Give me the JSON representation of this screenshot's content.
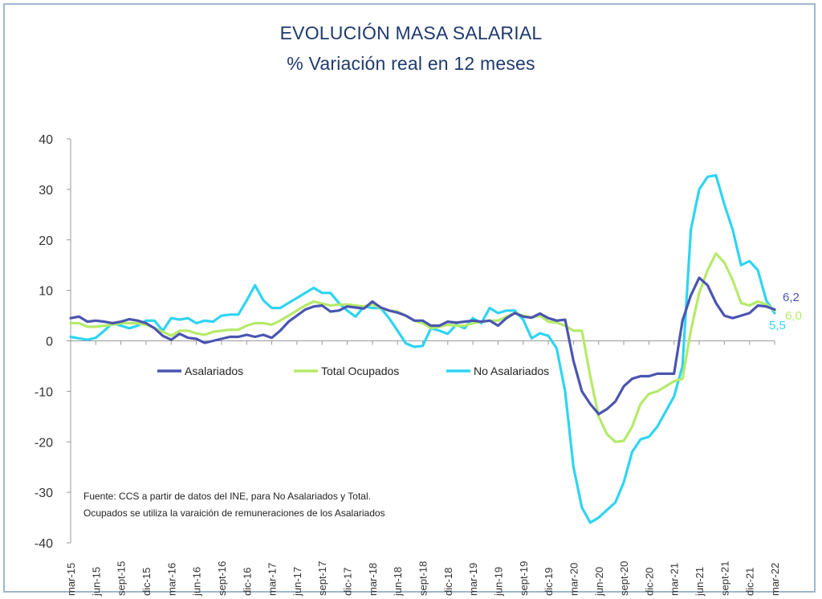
{
  "chart_data": {
    "type": "line",
    "title": "EVOLUCIÓN MASA SALARIAL",
    "subtitle": "% Variación real en 12 meses",
    "ylim": [
      -40,
      40
    ],
    "yticks": [
      40,
      30,
      20,
      10,
      0,
      -10,
      -20,
      -30,
      -40
    ],
    "xlim": [
      0,
      84
    ],
    "grid": false,
    "legend_position": "center-left",
    "xtick_positions": [
      0,
      3,
      6,
      9,
      12,
      15,
      18,
      21,
      24,
      27,
      30,
      33,
      36,
      39,
      42,
      45,
      48,
      51,
      54,
      57,
      60,
      63,
      66,
      69,
      72,
      75,
      78,
      81,
      84
    ],
    "xtick_labels": [
      "mar-15",
      "jun-15",
      "sept-15",
      "dic-15",
      "mar-16",
      "jun-16",
      "sept-16",
      "dic-16",
      "mar-17",
      "jun-17",
      "sept-17",
      "dic-17",
      "mar-18",
      "jun-18",
      "sept-18",
      "dic-18",
      "mar-19",
      "jun-19",
      "sept-19",
      "dic-19",
      "mar-20",
      "jun-20",
      "sept-20",
      "dic-20",
      "mar-21",
      "jun-21",
      "sept-21",
      "dic-21",
      "mar-22"
    ],
    "series": [
      {
        "name": "Asalariados",
        "color": "#4a55b0",
        "end_label": "6,2",
        "values": [
          4.5,
          4.8,
          3.8,
          4.0,
          3.8,
          3.5,
          3.8,
          4.3,
          4.0,
          3.5,
          2.5,
          1.0,
          0.2,
          1.4,
          0.6,
          0.4,
          -0.4,
          0.0,
          0.4,
          0.8,
          0.8,
          1.2,
          0.8,
          1.2,
          0.6,
          2.0,
          3.8,
          5.0,
          6.2,
          6.8,
          7.0,
          5.8,
          6.0,
          6.8,
          6.6,
          6.4,
          7.8,
          6.6,
          6.0,
          5.6,
          5.0,
          4.0,
          4.0,
          3.0,
          3.0,
          3.8,
          3.6,
          3.8,
          4.0,
          3.8,
          4.0,
          3.0,
          4.5,
          5.5,
          4.8,
          4.6,
          5.4,
          4.5,
          4.0,
          4.2,
          -4.0,
          -10.0,
          -12.5,
          -14.5,
          -13.5,
          -12.0,
          -9.0,
          -7.5,
          -7.0,
          -7.0,
          -6.5,
          -6.5,
          -6.5,
          4.0,
          9.0,
          12.5,
          11.0,
          7.5,
          5.0,
          4.5,
          5.0,
          5.5,
          7.0,
          6.8,
          6.2
        ]
      },
      {
        "name": "Total Ocupados",
        "color": "#b5ea6a",
        "end_label": "6,0",
        "values": [
          3.5,
          3.5,
          2.8,
          2.8,
          3.0,
          3.2,
          3.5,
          3.5,
          3.5,
          3.2,
          2.6,
          1.8,
          1.0,
          2.0,
          2.0,
          1.5,
          1.2,
          1.8,
          2.0,
          2.2,
          2.2,
          3.0,
          3.5,
          3.5,
          3.2,
          4.0,
          5.0,
          6.0,
          7.0,
          7.8,
          7.4,
          7.0,
          7.2,
          7.2,
          7.0,
          6.8,
          7.2,
          6.5,
          6.0,
          5.8,
          5.0,
          4.0,
          3.5,
          2.5,
          2.8,
          3.2,
          3.0,
          3.0,
          3.5,
          3.8,
          4.0,
          4.0,
          4.8,
          5.5,
          5.0,
          4.6,
          5.0,
          3.8,
          3.6,
          3.0,
          2.0,
          2.0,
          -7.0,
          -15.0,
          -18.5,
          -20.0,
          -19.8,
          -17.0,
          -12.5,
          -10.5,
          -10.0,
          -9.0,
          -8.0,
          -7.5,
          2.0,
          9.5,
          14.0,
          17.3,
          15.5,
          12.0,
          7.5,
          7.0,
          7.8,
          7.2,
          6.0
        ]
      },
      {
        "name": "No Asalariados",
        "color": "#2fd4f2",
        "end_label": "5,5",
        "values": [
          0.8,
          0.5,
          0.2,
          0.6,
          2.0,
          3.5,
          3.0,
          2.5,
          3.0,
          4.0,
          4.0,
          2.0,
          4.5,
          4.2,
          4.5,
          3.5,
          4.0,
          3.8,
          5.0,
          5.2,
          5.2,
          8.0,
          11.0,
          8.0,
          6.5,
          6.5,
          7.5,
          8.5,
          9.5,
          10.5,
          9.5,
          9.5,
          7.5,
          6.0,
          4.8,
          6.8,
          6.5,
          6.5,
          4.5,
          2.0,
          -0.5,
          -1.2,
          -1.0,
          2.5,
          2.0,
          1.4,
          3.2,
          2.5,
          4.5,
          3.5,
          6.5,
          5.5,
          6.0,
          6.0,
          4.2,
          0.5,
          1.5,
          1.0,
          -1.5,
          -10.0,
          -25.0,
          -33.0,
          -36.0,
          -35.0,
          -33.5,
          -32.0,
          -28.0,
          -22.0,
          -19.5,
          -19.0,
          -17.0,
          -14.0,
          -11.0,
          -5.0,
          22.0,
          30.0,
          32.5,
          32.8,
          27.0,
          22.0,
          15.0,
          15.8,
          14.0,
          8.0,
          5.5
        ]
      }
    ],
    "annotations": [
      "Fuente: CCS a partir de datos del INE, para No Asalariados y Total.",
      "Ocupados se utiliza la varaición de remuneraciones de los Asalariados"
    ]
  }
}
